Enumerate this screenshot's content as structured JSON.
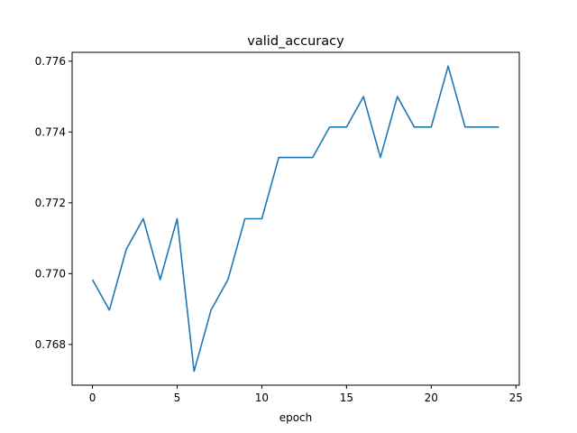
{
  "chart_data": {
    "type": "line",
    "title": "valid_accuracy",
    "xlabel": "epoch",
    "ylabel": "",
    "grid": false,
    "legend": "none",
    "xlim": [
      -1.2,
      25.2
    ],
    "ylim": [
      0.76685,
      0.77625
    ],
    "xticks": [
      0,
      5,
      10,
      15,
      20,
      25
    ],
    "yticks": [
      0.768,
      0.77,
      0.772,
      0.774,
      0.776
    ],
    "ytick_labels": [
      "0.768",
      "0.770",
      "0.772",
      "0.774",
      "0.776"
    ],
    "line_color": "#1f77b4",
    "series": [
      {
        "x": [
          0,
          1,
          2,
          3,
          4,
          5,
          6,
          7,
          8,
          9,
          10,
          11,
          12,
          13,
          14,
          15,
          16,
          17,
          18,
          19,
          20,
          21,
          22,
          23,
          24
        ],
        "values": [
          0.76983,
          0.76897,
          0.77069,
          0.77155,
          0.76983,
          0.77155,
          0.76724,
          0.76897,
          0.76983,
          0.77155,
          0.77155,
          0.77328,
          0.77328,
          0.77328,
          0.77414,
          0.77414,
          0.775,
          0.77328,
          0.775,
          0.77414,
          0.77414,
          0.77586,
          0.77414,
          0.77414,
          0.77414
        ]
      }
    ]
  }
}
